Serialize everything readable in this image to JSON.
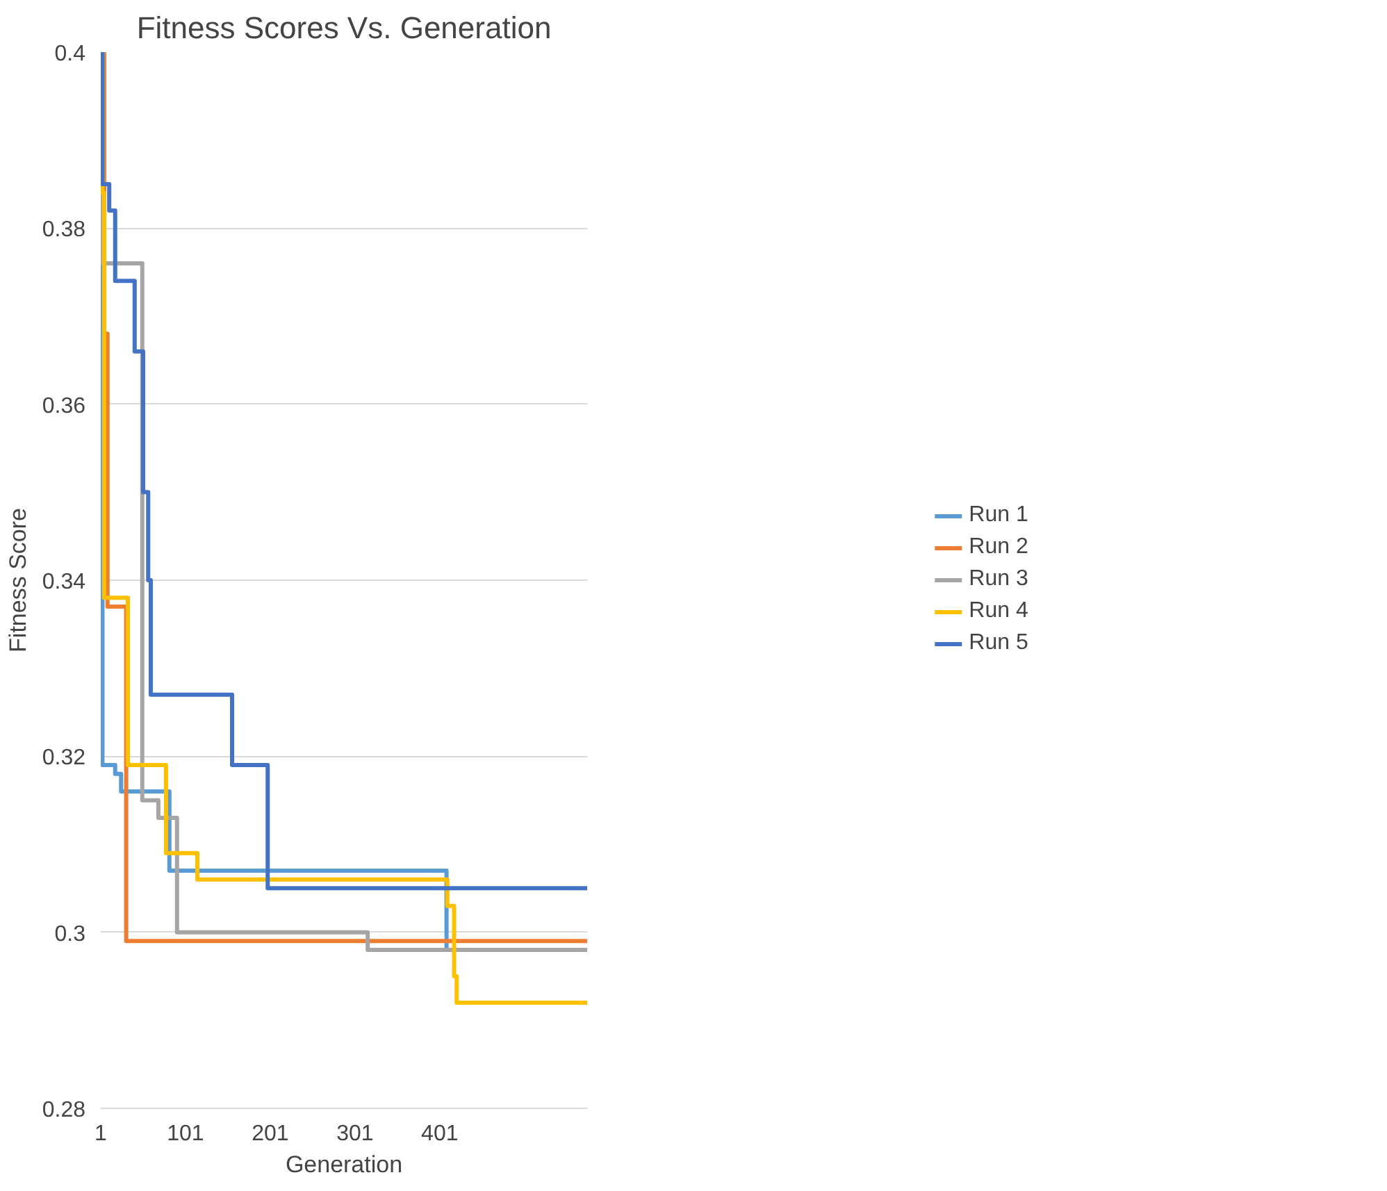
{
  "chart_data": {
    "type": "step",
    "title": "Fitness Scores Vs. Generation",
    "xlabel": "Generation",
    "ylabel": "Fitness Score",
    "xlim": [
      1,
      575
    ],
    "xticks": [
      1,
      101,
      201,
      301,
      401
    ],
    "ylim": [
      0.28,
      0.4
    ],
    "yticks": [
      0.28,
      0.3,
      0.32,
      0.34,
      0.36,
      0.38,
      0.4
    ],
    "grid": "y",
    "legend": "right",
    "line_style": "solid",
    "marker": "none",
    "series": [
      {
        "name": "Run 1",
        "color": "#5b9bd5",
        "x": [
          1,
          3,
          18,
          25,
          82,
          409,
          575
        ],
        "values": [
          0.4,
          0.319,
          0.318,
          0.316,
          0.307,
          0.298,
          0.298
        ]
      },
      {
        "name": "Run 2",
        "color": "#ed7d31",
        "x": [
          1,
          5,
          9,
          31,
          575
        ],
        "values": [
          0.4,
          0.368,
          0.337,
          0.299,
          0.299
        ]
      },
      {
        "name": "Run 3",
        "color": "#a5a5a5",
        "x": [
          1,
          3,
          50,
          69,
          91,
          316,
          575
        ],
        "values": [
          0.4,
          0.376,
          0.315,
          0.313,
          0.3,
          0.298,
          0.298
        ]
      },
      {
        "name": "Run 4",
        "color": "#ffc000",
        "x": [
          1,
          3,
          5,
          33,
          78,
          115,
          410,
          418,
          421,
          575
        ],
        "values": [
          0.4,
          0.384,
          0.338,
          0.319,
          0.309,
          0.306,
          0.303,
          0.295,
          0.292,
          0.292
        ]
      },
      {
        "name": "Run 5",
        "color": "#4472c4",
        "x": [
          1,
          3,
          11,
          18,
          41,
          51,
          57,
          60,
          156,
          198,
          575
        ],
        "values": [
          0.4,
          0.385,
          0.382,
          0.374,
          0.366,
          0.35,
          0.34,
          0.327,
          0.319,
          0.305,
          0.305
        ]
      }
    ]
  }
}
